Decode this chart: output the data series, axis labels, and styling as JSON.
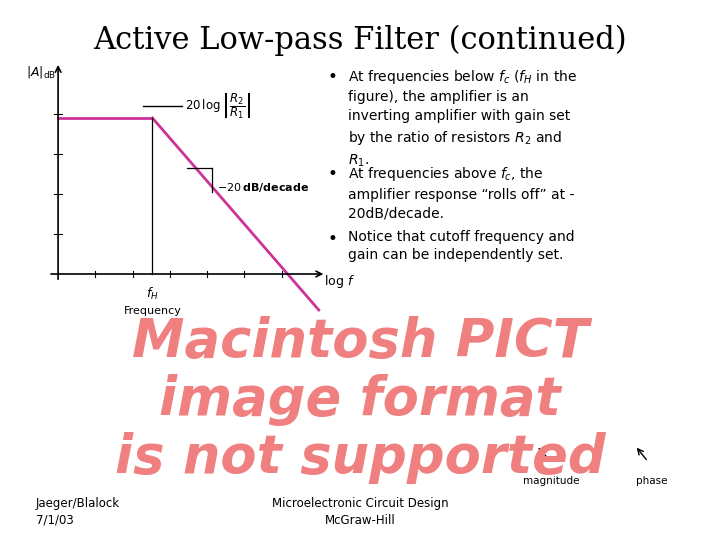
{
  "title": "Active Low-pass Filter (continued)",
  "title_fontsize": 22,
  "background_color": "#ffffff",
  "bullet1": "At frequencies below $f_c$ ($f_H$ in the\nfigure), the amplifier is an\ninverting amplifier with gain set\nby the ratio of resistors $R_2$ and\n$R_1$.",
  "bullet2": "At frequencies above $f_c$, the\namplifier response “rolls off” at -\n20dB/decade.",
  "bullet3": "Notice that cutoff frequency and\ngain can be independently set.",
  "bullet_fontsize": 10.0,
  "footer_left": "Jaeger/Blalock\n7/1/03",
  "footer_center": "Microelectronic Circuit Design\nMcGraw-Hill",
  "footer_fontsize": 8.5,
  "graph_color": "#cc3399",
  "watermark_color": "#f08080",
  "watermark_text": "Macintosh PICT\nimage format\nis not supported",
  "watermark_fontsize": 38,
  "magnitude_label": "magnitude",
  "phase_label": "phase",
  "label_fontsize": 7.5
}
